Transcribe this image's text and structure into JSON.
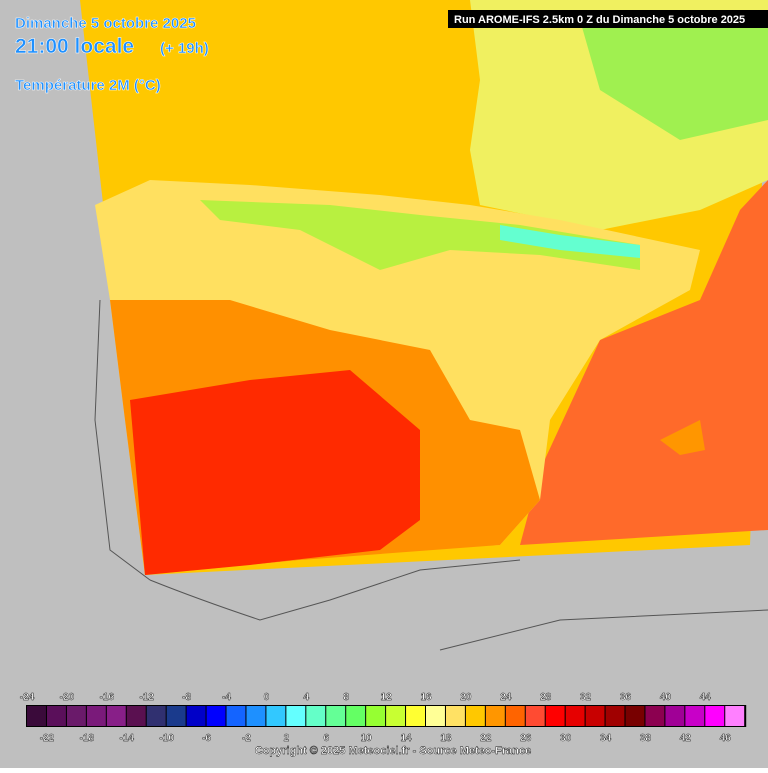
{
  "header": {
    "date": "Dimanche 5 octobre 2025",
    "time": "21:00 locale",
    "lead": "(+ 19h)",
    "parameter": "Température 2M (°C)",
    "run": "Run AROME-IFS 2.5km 0 Z du Dimanche 5 octobre 2025"
  },
  "legend": {
    "ticks": [
      -24,
      -22,
      -20,
      -18,
      -16,
      -14,
      -12,
      -10,
      -8,
      -6,
      -4,
      -2,
      0,
      2,
      4,
      6,
      8,
      10,
      12,
      14,
      16,
      18,
      20,
      22,
      24,
      26,
      28,
      30,
      32,
      34,
      36,
      38,
      40,
      42,
      44,
      46
    ],
    "colors": [
      "#3a0a3a",
      "#5a0f5a",
      "#6a1a6a",
      "#7a1a7a",
      "#881f88",
      "#5a1050",
      "#303070",
      "#1a3a8c",
      "#0000c8",
      "#0000ff",
      "#1464ff",
      "#1e90ff",
      "#32c8ff",
      "#64ffff",
      "#64ffc8",
      "#64ff96",
      "#64ff64",
      "#96ff32",
      "#c8ff32",
      "#ffff32",
      "#ffff96",
      "#ffe164",
      "#ffc800",
      "#ff9600",
      "#ff6400",
      "#ff4b32",
      "#ff0000",
      "#e60000",
      "#c80000",
      "#a00000",
      "#780000",
      "#8c0050",
      "#a00096",
      "#c800c8",
      "#ff00ff",
      "#ff80ff"
    ]
  },
  "footer": {
    "copyright": "Copyright © 2025 Meteociel.fr - Source Meteo-France"
  }
}
